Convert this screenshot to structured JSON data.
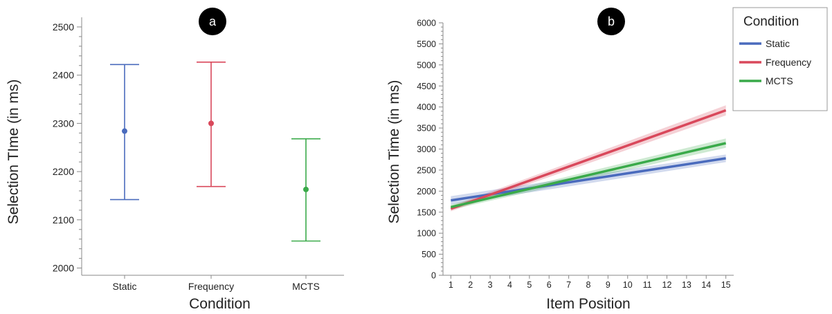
{
  "panels": {
    "a_badge": "a",
    "b_badge": "b"
  },
  "chart_data": [
    {
      "type": "errorbar",
      "badge": "a",
      "xlabel": "Condition",
      "ylabel": "Selection TIme (in ms)",
      "categories": [
        "Static",
        "Frequency",
        "MCTS"
      ],
      "means": [
        2284,
        2300,
        2163
      ],
      "ci_low": [
        2142,
        2169,
        2056
      ],
      "ci_high": [
        2422,
        2427,
        2268
      ],
      "colors": [
        "#4a6bbd",
        "#d9485b",
        "#3aaa4a"
      ],
      "ylim": [
        1985,
        2520
      ],
      "yticks": [
        2000,
        2100,
        2200,
        2300,
        2400,
        2500
      ],
      "grid": false
    },
    {
      "type": "line",
      "badge": "b",
      "xlabel": "Item Position",
      "ylabel": "Selection Time (in ms)",
      "x": [
        1,
        2,
        3,
        4,
        5,
        6,
        7,
        8,
        9,
        10,
        11,
        12,
        13,
        14,
        15
      ],
      "xlim": [
        0.6,
        15.4
      ],
      "ylim": [
        0,
        6000
      ],
      "yticks": [
        0,
        500,
        1000,
        1500,
        2000,
        2500,
        3000,
        3500,
        4000,
        4500,
        5000,
        5500,
        6000
      ],
      "legend_title": "Condition",
      "legend_position": "top-right",
      "grid": false,
      "series": [
        {
          "name": "Static",
          "color": "#4a6bbd",
          "start": [
            1,
            1780
          ],
          "end": [
            15,
            2780
          ],
          "band_start": 100,
          "band_end": 90
        },
        {
          "name": "Frequency",
          "color": "#d9485b",
          "start": [
            1,
            1580
          ],
          "end": [
            15,
            3920
          ],
          "band_start": 60,
          "band_end": 120
        },
        {
          "name": "MCTS",
          "color": "#3aaa4a",
          "start": [
            1,
            1620
          ],
          "end": [
            15,
            3140
          ],
          "band_start": 60,
          "band_end": 110
        }
      ]
    }
  ]
}
